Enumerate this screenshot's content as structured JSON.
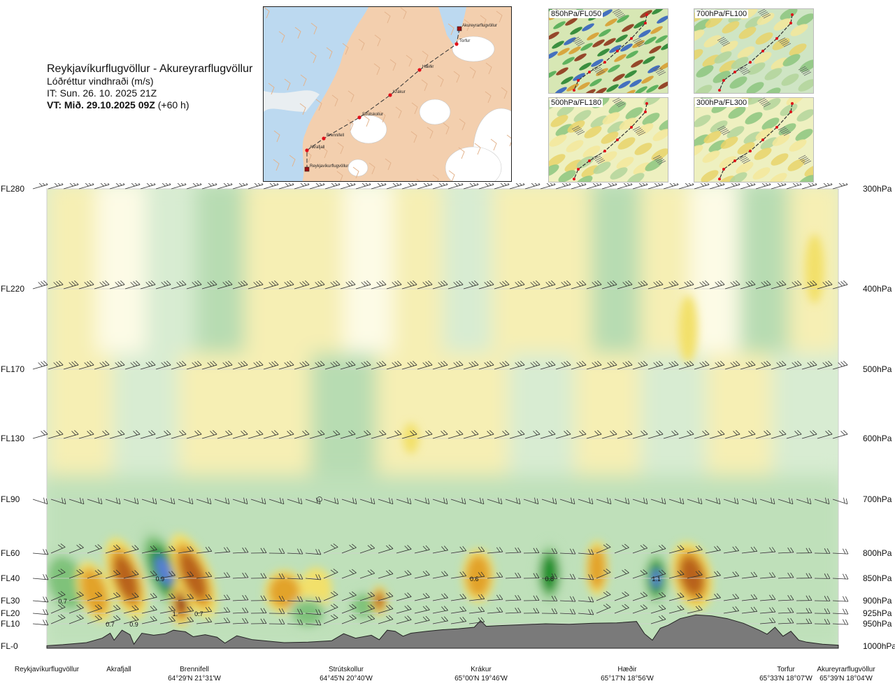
{
  "header": {
    "title": "Reykjavíkurflugvöllur - Akureyrarflugvöllur",
    "subtitle": "Lóðréttur vindhraði (m/s)",
    "it_line": "IT: Sun. 26. 10. 2025 21Z",
    "vt_bold": "VT: Mið. 29.10.2025 09Z",
    "vt_rest": " (+60 h)"
  },
  "map": {
    "waypoints": [
      "Akureyrarflugvöllur",
      "Torfur",
      "Hæðir",
      "Krákur",
      "Strútskollur",
      "Brennifell",
      "Akrafjall",
      "Reykjavíkurflugvöllur"
    ],
    "colors": {
      "land": "#f3cfae",
      "sea": "#bcd9f0",
      "glacier": "#ffffff",
      "route": "#333333",
      "point": "#e0101a"
    }
  },
  "thumbnails": [
    {
      "label": "850hPa/FL050"
    },
    {
      "label": "700hPa/FL100"
    },
    {
      "label": "500hPa/FL180"
    },
    {
      "label": "300hPa/FL300"
    }
  ],
  "chart_data": {
    "type": "heatmap",
    "title": "Reykjavíkurflugvöllur - Akureyrarflugvöllur",
    "variable": "Lóðréttur vindhraði (m/s)",
    "left_axis": [
      "FL280",
      "FL220",
      "FL170",
      "FL130",
      "FL90",
      "FL60",
      "FL40",
      "FL30",
      "FL20",
      "FL10",
      "FL-0"
    ],
    "right_axis": [
      "300hPa",
      "400hPa",
      "500hPa",
      "600hPa",
      "700hPa",
      "800hPa",
      "850hPa",
      "900hPa",
      "925hPa",
      "950hPa",
      "1000hPa"
    ],
    "levels_hpa": [
      300,
      400,
      500,
      600,
      700,
      800,
      850,
      900,
      925,
      950,
      1000
    ],
    "locations": [
      {
        "name": "Reykjavíkurflugvöllur",
        "coord": "",
        "x": 0.0
      },
      {
        "name": "Akrafjall",
        "coord": "",
        "x": 0.09
      },
      {
        "name": "Brennifell",
        "coord": "64°29'N 21°31'W",
        "x": 0.18
      },
      {
        "name": "Strútskollur",
        "coord": "64°45'N 20°40'W",
        "x": 0.38
      },
      {
        "name": "Krákur",
        "coord": "65°00'N 19°46'W",
        "x": 0.57
      },
      {
        "name": "Hæðir",
        "coord": "65°17'N 18°56'W",
        "x": 0.76
      },
      {
        "name": "Torfur",
        "coord": "65°33'N 18°07'W",
        "x": 0.94
      },
      {
        "name": "Akureyrarflugvöllur",
        "coord": "65°39'N 18°04'W",
        "x": 1.0
      }
    ],
    "value_labels": [
      {
        "text": "0.7",
        "x": 0.02,
        "p": 900
      },
      {
        "text": "0.7",
        "x": 0.08,
        "p": 950
      },
      {
        "text": "0.9",
        "x": 0.11,
        "p": 950
      },
      {
        "text": "0.9",
        "x": 0.143,
        "p": 850
      },
      {
        "text": "1.",
        "x": 0.162,
        "p": 925
      },
      {
        "text": "0.7",
        "x": 0.192,
        "p": 925
      },
      {
        "text": "0.6",
        "x": 0.54,
        "p": 850
      },
      {
        "text": "0.8",
        "x": 0.635,
        "p": 850
      },
      {
        "text": "1.1",
        "x": 0.77,
        "p": 850
      }
    ],
    "terrain_m": [
      [
        0.0,
        10
      ],
      [
        0.02,
        30
      ],
      [
        0.05,
        70
      ],
      [
        0.07,
        160
      ],
      [
        0.08,
        260
      ],
      [
        0.085,
        120
      ],
      [
        0.095,
        320
      ],
      [
        0.105,
        230
      ],
      [
        0.11,
        40
      ],
      [
        0.12,
        260
      ],
      [
        0.135,
        220
      ],
      [
        0.15,
        250
      ],
      [
        0.16,
        320
      ],
      [
        0.175,
        290
      ],
      [
        0.185,
        190
      ],
      [
        0.2,
        230
      ],
      [
        0.215,
        180
      ],
      [
        0.225,
        60
      ],
      [
        0.24,
        210
      ],
      [
        0.26,
        130
      ],
      [
        0.28,
        100
      ],
      [
        0.3,
        70
      ],
      [
        0.33,
        80
      ],
      [
        0.36,
        110
      ],
      [
        0.375,
        250
      ],
      [
        0.39,
        160
      ],
      [
        0.41,
        220
      ],
      [
        0.42,
        130
      ],
      [
        0.43,
        320
      ],
      [
        0.44,
        300
      ],
      [
        0.45,
        200
      ],
      [
        0.46,
        260
      ],
      [
        0.48,
        300
      ],
      [
        0.5,
        330
      ],
      [
        0.52,
        350
      ],
      [
        0.54,
        380
      ],
      [
        0.548,
        520
      ],
      [
        0.555,
        400
      ],
      [
        0.57,
        410
      ],
      [
        0.6,
        430
      ],
      [
        0.63,
        450
      ],
      [
        0.66,
        440
      ],
      [
        0.69,
        460
      ],
      [
        0.72,
        470
      ],
      [
        0.745,
        500
      ],
      [
        0.755,
        250
      ],
      [
        0.765,
        120
      ],
      [
        0.775,
        360
      ],
      [
        0.785,
        420
      ],
      [
        0.8,
        560
      ],
      [
        0.82,
        640
      ],
      [
        0.84,
        620
      ],
      [
        0.86,
        560
      ],
      [
        0.88,
        460
      ],
      [
        0.9,
        320
      ],
      [
        0.91,
        240
      ],
      [
        0.92,
        380
      ],
      [
        0.93,
        200
      ],
      [
        0.94,
        300
      ],
      [
        0.95,
        120
      ],
      [
        0.96,
        80
      ],
      [
        0.98,
        40
      ],
      [
        1.0,
        20
      ]
    ],
    "color_scale": {
      "strong_down": "#8b1a12",
      "down": "#b8621c",
      "weak_down": "#e2a32b",
      "slight_down": "#f2e06a",
      "neutral_down": "#f6efb4",
      "neutral": "#fdfbe6",
      "neutral_up": "#d8ecd2",
      "slight_up": "#b7dcb2",
      "weak_up": "#7fc27a",
      "up": "#1b8f2a",
      "strong_up": "#5a7fd6",
      "terrain": "#7a7a7a"
    },
    "blobs": [
      {
        "x": 0.025,
        "p": 860,
        "w": 0.028,
        "h": 120,
        "v": 1.0,
        "tilt": 0.2
      },
      {
        "x": 0.06,
        "p": 880,
        "w": 0.02,
        "h": 110,
        "v": -0.9,
        "tilt": 0.2
      },
      {
        "x": 0.1,
        "p": 850,
        "w": 0.022,
        "h": 150,
        "v": -1.4,
        "tilt": 0.2
      },
      {
        "x": 0.148,
        "p": 835,
        "w": 0.026,
        "h": 170,
        "v": 1.7,
        "tilt": 0.25
      },
      {
        "x": 0.17,
        "p": 905,
        "w": 0.014,
        "h": 80,
        "v": -1.6,
        "tilt": 0
      },
      {
        "x": 0.185,
        "p": 845,
        "w": 0.022,
        "h": 160,
        "v": -1.3,
        "tilt": 0.25
      },
      {
        "x": 0.3,
        "p": 880,
        "w": 0.025,
        "h": 70,
        "v": -0.7,
        "tilt": 0
      },
      {
        "x": 0.34,
        "p": 875,
        "w": 0.02,
        "h": 70,
        "v": -0.6,
        "tilt": 0
      },
      {
        "x": 0.33,
        "p": 925,
        "w": 0.025,
        "h": 45,
        "v": 1.0,
        "tilt": 0
      },
      {
        "x": 0.4,
        "p": 910,
        "w": 0.018,
        "h": 40,
        "v": 0.8,
        "tilt": 0
      },
      {
        "x": 0.42,
        "p": 900,
        "w": 0.01,
        "h": 40,
        "v": -1.2,
        "tilt": 0
      },
      {
        "x": 0.545,
        "p": 845,
        "w": 0.02,
        "h": 90,
        "v": -1.1,
        "tilt": 0
      },
      {
        "x": 0.635,
        "p": 840,
        "w": 0.018,
        "h": 110,
        "v": 1.3,
        "tilt": 0
      },
      {
        "x": 0.695,
        "p": 830,
        "w": 0.014,
        "h": 90,
        "v": -0.8,
        "tilt": 0
      },
      {
        "x": 0.77,
        "p": 850,
        "w": 0.018,
        "h": 100,
        "v": 1.9,
        "tilt": 0
      },
      {
        "x": 0.815,
        "p": 845,
        "w": 0.025,
        "h": 120,
        "v": -1.2,
        "tilt": 0.15
      },
      {
        "x": 0.81,
        "p": 450,
        "w": 0.012,
        "h": 70,
        "v": -0.5,
        "tilt": 0
      },
      {
        "x": 0.97,
        "p": 380,
        "w": 0.012,
        "h": 60,
        "v": -0.4,
        "tilt": 0
      },
      {
        "x": 0.46,
        "p": 600,
        "w": 0.01,
        "h": 30,
        "v": -0.4,
        "tilt": 0
      }
    ]
  }
}
